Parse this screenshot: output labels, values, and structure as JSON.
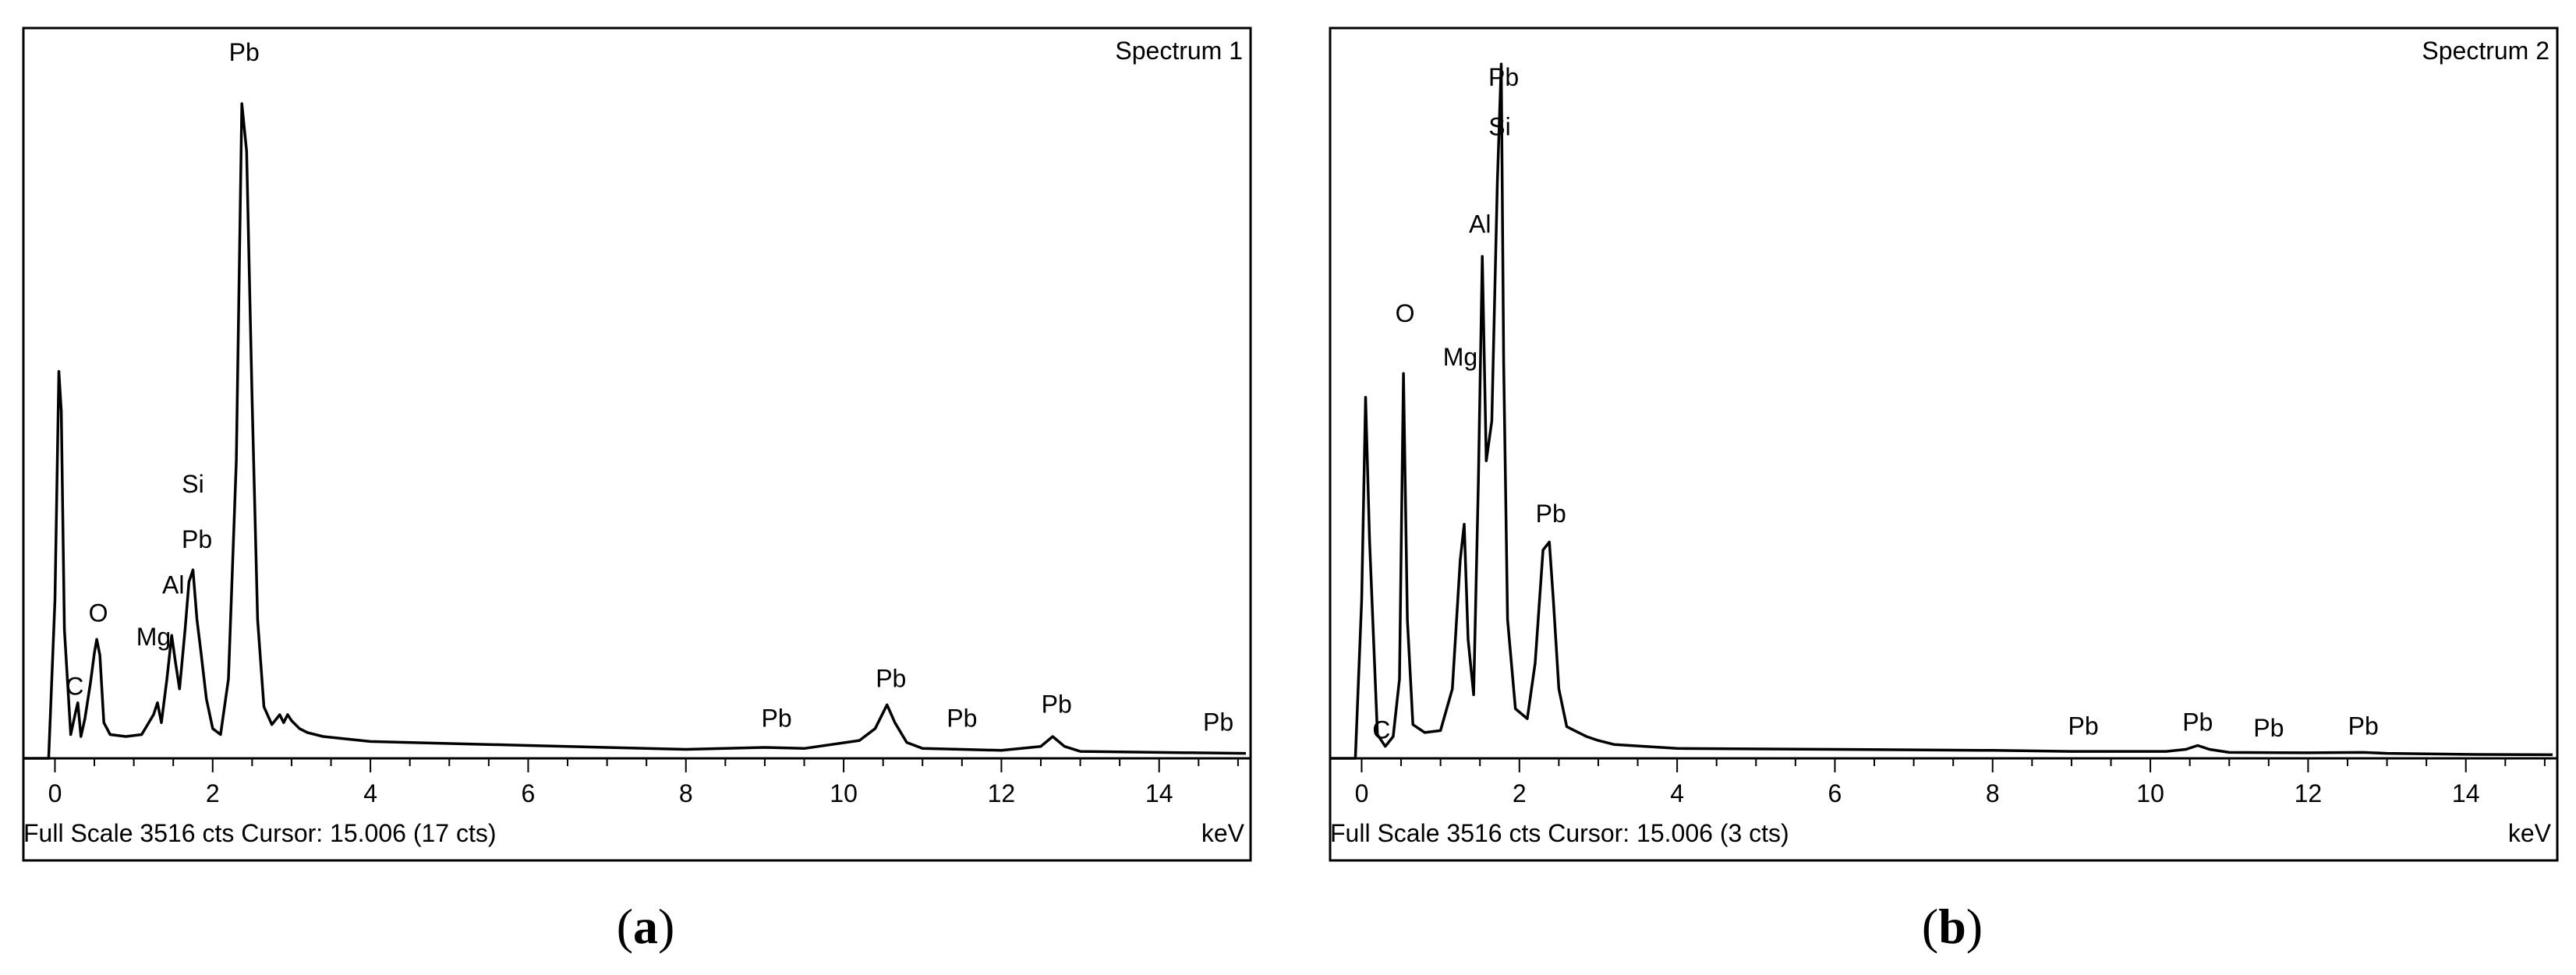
{
  "chart_data": [
    {
      "type": "line",
      "title": "Spectrum 1",
      "xlabel": "keV",
      "xlim": [
        -0.4,
        15.1
      ],
      "ylim": [
        0,
        3516
      ],
      "xticks": [
        "0",
        "2",
        "4",
        "6",
        "8",
        "10",
        "12",
        "14"
      ],
      "xtick_values": [
        0,
        2,
        4,
        6,
        8,
        10,
        12,
        14
      ],
      "status_text": "Full Scale 3516 cts Cursor: 15.006  (17 cts)",
      "caption": {
        "open": "(",
        "letter": "a",
        "close": ")"
      },
      "series": [
        {
          "x": [
            -0.4,
            -0.08,
            0.0,
            0.05,
            0.08,
            0.12,
            0.2,
            0.26,
            0.29,
            0.33,
            0.38,
            0.45,
            0.5,
            0.53,
            0.57,
            0.62,
            0.7,
            0.9,
            1.1,
            1.25,
            1.3,
            1.35,
            1.42,
            1.48,
            1.53,
            1.58,
            1.65,
            1.7,
            1.75,
            1.8,
            1.85,
            1.92,
            2.0,
            2.1,
            2.2,
            2.3,
            2.37,
            2.43,
            2.5,
            2.57,
            2.65,
            2.75,
            2.85,
            2.9,
            2.95,
            3.0,
            3.1,
            3.2,
            3.4,
            4.0,
            6.0,
            8.0,
            9.0,
            9.5,
            10.2,
            10.4,
            10.55,
            10.65,
            10.8,
            11.0,
            11.5,
            12.0,
            12.5,
            12.65,
            12.8,
            13.0,
            14.0,
            15.1
          ],
          "y": [
            0,
            0,
            800,
            1950,
            1750,
            650,
            120,
            230,
            280,
            110,
            200,
            380,
            530,
            600,
            520,
            180,
            120,
            110,
            120,
            220,
            280,
            180,
            400,
            620,
            480,
            350,
            650,
            890,
            950,
            700,
            540,
            300,
            150,
            120,
            400,
            1500,
            3300,
            3060,
            1800,
            700,
            260,
            170,
            220,
            180,
            220,
            190,
            150,
            130,
            110,
            85,
            65,
            45,
            55,
            50,
            90,
            150,
            270,
            180,
            80,
            50,
            45,
            40,
            60,
            110,
            60,
            35,
            30,
            25
          ]
        }
      ],
      "annotations": [
        {
          "text": "Pb",
          "x": 2.4,
          "y": 3516
        },
        {
          "text": "Si",
          "x": 1.75,
          "y": 1340
        },
        {
          "text": "Pb",
          "x": 1.8,
          "y": 1060
        },
        {
          "text": "Al",
          "x": 1.5,
          "y": 830
        },
        {
          "text": "O",
          "x": 0.55,
          "y": 690
        },
        {
          "text": "Mg",
          "x": 1.25,
          "y": 570
        },
        {
          "text": "C",
          "x": 0.25,
          "y": 320
        },
        {
          "text": "Pb",
          "x": 9.15,
          "y": 160
        },
        {
          "text": "Pb",
          "x": 10.6,
          "y": 360
        },
        {
          "text": "Pb",
          "x": 11.5,
          "y": 160
        },
        {
          "text": "Pb",
          "x": 12.7,
          "y": 230
        },
        {
          "text": "Pb",
          "x": 14.75,
          "y": 140
        }
      ]
    },
    {
      "type": "line",
      "title": "Spectrum 2",
      "xlabel": "keV",
      "xlim": [
        -0.4,
        15.1
      ],
      "ylim": [
        0,
        3516
      ],
      "xticks": [
        "0",
        "2",
        "4",
        "6",
        "8",
        "10",
        "12",
        "14"
      ],
      "xtick_values": [
        0,
        2,
        4,
        6,
        8,
        10,
        12,
        14
      ],
      "status_text": "Full Scale 3516 cts Cursor: 15.006  (3 cts)",
      "caption": {
        "open": "(",
        "letter": "b",
        "close": ")"
      },
      "series": [
        {
          "x": [
            -0.4,
            -0.08,
            0.0,
            0.05,
            0.1,
            0.2,
            0.3,
            0.4,
            0.48,
            0.53,
            0.58,
            0.65,
            0.8,
            1.0,
            1.15,
            1.25,
            1.3,
            1.35,
            1.42,
            1.48,
            1.53,
            1.58,
            1.65,
            1.72,
            1.77,
            1.8,
            1.85,
            1.95,
            2.1,
            2.2,
            2.3,
            2.38,
            2.43,
            2.5,
            2.6,
            2.7,
            2.85,
            3.0,
            3.2,
            4.0,
            6.0,
            8.0,
            9.0,
            10.2,
            10.45,
            10.6,
            10.75,
            11.0,
            12.0,
            12.7,
            13.0,
            14.0,
            15.1
          ],
          "y": [
            0,
            0,
            800,
            1820,
            1100,
            120,
            60,
            110,
            400,
            1940,
            700,
            170,
            130,
            140,
            350,
            1000,
            1180,
            600,
            320,
            1400,
            2530,
            1500,
            1700,
            2900,
            3500,
            2000,
            700,
            250,
            200,
            480,
            1050,
            1090,
            800,
            350,
            160,
            140,
            110,
            90,
            70,
            50,
            45,
            40,
            35,
            35,
            45,
            65,
            45,
            30,
            28,
            30,
            25,
            20,
            18
          ]
        }
      ],
      "annotations": [
        {
          "text": "Pb",
          "x": 1.8,
          "y": 3390
        },
        {
          "text": "Si",
          "x": 1.75,
          "y": 3140
        },
        {
          "text": "Al",
          "x": 1.5,
          "y": 2650
        },
        {
          "text": "O",
          "x": 0.55,
          "y": 2200
        },
        {
          "text": "Mg",
          "x": 1.25,
          "y": 1980
        },
        {
          "text": "Pb",
          "x": 2.4,
          "y": 1190
        },
        {
          "text": "C",
          "x": 0.25,
          "y": 100
        },
        {
          "text": "Pb",
          "x": 9.15,
          "y": 120
        },
        {
          "text": "Pb",
          "x": 10.6,
          "y": 140
        },
        {
          "text": "Pb",
          "x": 11.5,
          "y": 110
        },
        {
          "text": "Pb",
          "x": 12.7,
          "y": 120
        }
      ]
    }
  ],
  "colors": {
    "line": "#000000",
    "background": "#ffffff",
    "frame": "#000000"
  }
}
